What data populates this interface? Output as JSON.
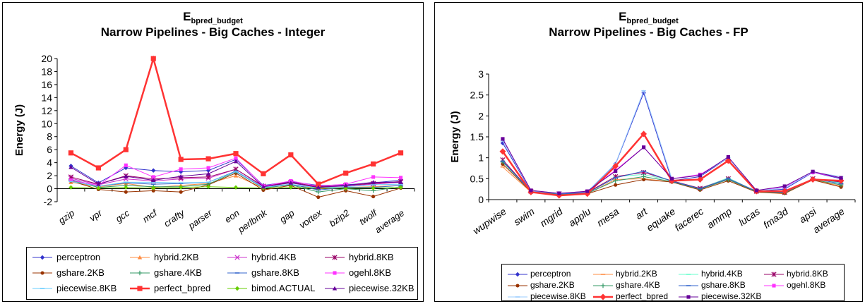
{
  "chart_data": [
    {
      "type": "line",
      "title_main": "E",
      "title_sub": "bpred_budget",
      "title": "Narrow Pipelines - Big Caches - Integer",
      "ylabel": "Energy (J)",
      "xlabel": "",
      "ylim": [
        -2,
        20
      ],
      "yticks": [
        "-2",
        "0",
        "2",
        "4",
        "6",
        "8",
        "10",
        "12",
        "14",
        "16",
        "18",
        "20"
      ],
      "grid": false,
      "legend_position": "bottom",
      "categories": [
        "gzip",
        "vpr",
        "gcc",
        "mcf",
        "crafty",
        "parser",
        "eon",
        "perlbmk",
        "gap",
        "vortex",
        "bzip2",
        "twolf",
        "average"
      ],
      "series": [
        {
          "name": "perceptron",
          "color": "#3333cc",
          "marker": "diamond",
          "values": [
            3.5,
            0.9,
            3.2,
            2.8,
            2.6,
            2.8,
            4.5,
            0.5,
            1.1,
            0.5,
            0.6,
            0.9,
            1.3
          ]
        },
        {
          "name": "hybrid.2KB",
          "color": "#ff8c42",
          "marker": "triangle",
          "values": [
            1.0,
            0.3,
            0.8,
            0.2,
            0.5,
            0.8,
            2.0,
            0.1,
            0.6,
            0.0,
            0.2,
            0.3,
            0.5
          ]
        },
        {
          "name": "hybrid.4KB",
          "color": "#cc33cc",
          "marker": "x",
          "values": [
            1.6,
            0.6,
            1.5,
            1.2,
            1.5,
            1.6,
            3.0,
            0.3,
            1.0,
            0.2,
            0.4,
            0.7,
            1.0
          ]
        },
        {
          "name": "hybrid.8KB",
          "color": "#990066",
          "marker": "star",
          "values": [
            1.8,
            0.7,
            2.0,
            1.5,
            1.7,
            1.8,
            3.0,
            0.4,
            1.0,
            0.3,
            0.5,
            0.8,
            1.1
          ]
        },
        {
          "name": "gshare.2KB",
          "color": "#993300",
          "marker": "circle",
          "values": [
            1.2,
            -0.1,
            -0.5,
            -0.3,
            -0.5,
            0.6,
            2.4,
            -0.2,
            0.5,
            -1.3,
            -0.3,
            -1.2,
            0.1
          ]
        },
        {
          "name": "gshare.4KB",
          "color": "#339966",
          "marker": "plus",
          "values": [
            1.3,
            0.2,
            0.5,
            0.3,
            0.3,
            0.7,
            2.6,
            0.1,
            0.6,
            -0.5,
            0.0,
            -0.3,
            0.3
          ]
        },
        {
          "name": "gshare.8KB",
          "color": "#3366cc",
          "marker": "dash",
          "values": [
            1.4,
            0.4,
            0.9,
            0.7,
            0.8,
            1.0,
            2.7,
            0.2,
            0.7,
            -0.2,
            0.2,
            0.2,
            0.5
          ]
        },
        {
          "name": "ogehl.8KB",
          "color": "#ff33ff",
          "marker": "square",
          "values": [
            1.3,
            0.5,
            3.6,
            1.8,
            3.0,
            3.2,
            4.7,
            0.4,
            1.2,
            0.4,
            0.7,
            1.8,
            1.7
          ]
        },
        {
          "name": "piecewise.8KB",
          "color": "#66ccff",
          "marker": "dash",
          "values": [
            1.1,
            0.4,
            1.0,
            1.0,
            0.9,
            1.0,
            2.6,
            0.2,
            0.7,
            0.1,
            0.3,
            0.6,
            0.7
          ]
        },
        {
          "name": "perfect_bpred",
          "color": "#ff3333",
          "marker": "square",
          "values": [
            5.5,
            3.2,
            6.0,
            20.0,
            4.5,
            4.6,
            5.4,
            2.3,
            5.2,
            0.7,
            2.4,
            3.8,
            5.5
          ]
        },
        {
          "name": "bimod.ACTUAL",
          "color": "#66cc00",
          "marker": "diamond",
          "values": [
            0.2,
            0.1,
            0.2,
            0.1,
            0.2,
            0.3,
            0.2,
            0.1,
            0.2,
            0.1,
            0.1,
            0.1,
            0.2
          ]
        },
        {
          "name": "piecewise.32KB",
          "color": "#660099",
          "marker": "triangle",
          "values": [
            3.3,
            0.7,
            1.9,
            1.3,
            1.9,
            2.3,
            4.2,
            0.3,
            0.9,
            0.2,
            0.5,
            1.0,
            1.0
          ]
        }
      ]
    },
    {
      "type": "line",
      "title_main": "E",
      "title_sub": "bpred_budget",
      "title": "Narrow Pipelines - Big Caches - FP",
      "ylabel": "Energy (J)",
      "xlabel": "",
      "ylim": [
        0,
        3
      ],
      "yticks": [
        "0",
        "0.5",
        "1",
        "1.5",
        "2",
        "2.5",
        "3"
      ],
      "grid": false,
      "legend_position": "bottom",
      "categories": [
        "wupwise",
        "swim",
        "mgrid",
        "applu",
        "mesa",
        "art",
        "equake",
        "facerec",
        "ammp",
        "lucas",
        "fma3d",
        "apsi",
        "average"
      ],
      "series": [
        {
          "name": "perceptron",
          "color": "#3333cc",
          "marker": "diamond",
          "values": [
            1.35,
            0.2,
            0.15,
            0.18,
            0.85,
            2.55,
            0.45,
            0.55,
            1.0,
            0.2,
            0.25,
            0.65,
            0.5
          ]
        },
        {
          "name": "hybrid.2KB",
          "color": "#ff8c42",
          "marker": "dash",
          "values": [
            0.78,
            0.18,
            0.12,
            0.14,
            0.48,
            0.5,
            0.42,
            0.25,
            0.48,
            0.18,
            0.14,
            0.48,
            0.32
          ]
        },
        {
          "name": "hybrid.4KB",
          "color": "#66ffcc",
          "marker": "dash",
          "values": [
            0.9,
            0.19,
            0.13,
            0.16,
            0.55,
            0.6,
            0.45,
            0.27,
            0.52,
            0.19,
            0.16,
            0.5,
            0.4
          ]
        },
        {
          "name": "hybrid.8KB",
          "color": "#990066",
          "marker": "star",
          "values": [
            0.95,
            0.2,
            0.14,
            0.17,
            0.55,
            0.65,
            0.45,
            0.27,
            0.5,
            0.2,
            0.17,
            0.5,
            0.42
          ]
        },
        {
          "name": "gshare.2KB",
          "color": "#993300",
          "marker": "circle",
          "values": [
            0.85,
            0.19,
            0.12,
            0.14,
            0.35,
            0.48,
            0.42,
            0.23,
            0.45,
            0.18,
            0.15,
            0.47,
            0.3
          ]
        },
        {
          "name": "gshare.4KB",
          "color": "#339966",
          "marker": "plus",
          "values": [
            0.9,
            0.2,
            0.13,
            0.15,
            0.45,
            0.55,
            0.43,
            0.25,
            0.48,
            0.19,
            0.16,
            0.48,
            0.35
          ]
        },
        {
          "name": "gshare.8KB",
          "color": "#3366cc",
          "marker": "dash",
          "values": [
            0.92,
            0.2,
            0.14,
            0.16,
            0.52,
            0.68,
            0.44,
            0.26,
            0.5,
            0.2,
            0.17,
            0.5,
            0.38
          ]
        },
        {
          "name": "ogehl.8KB",
          "color": "#ff33ff",
          "marker": "square",
          "values": [
            1.45,
            0.22,
            0.15,
            0.2,
            0.7,
            1.25,
            0.5,
            0.6,
            1.0,
            0.22,
            0.3,
            0.65,
            0.52
          ]
        },
        {
          "name": "piecewise.8KB",
          "color": "#99ccff",
          "marker": "dash",
          "values": [
            1.4,
            0.21,
            0.15,
            0.19,
            0.86,
            2.6,
            0.5,
            0.58,
            1.0,
            0.21,
            0.28,
            0.66,
            0.55
          ]
        },
        {
          "name": "perfect_bpred",
          "color": "#ff3333",
          "marker": "diamond",
          "values": [
            1.15,
            0.18,
            0.1,
            0.14,
            0.8,
            1.57,
            0.45,
            0.48,
            0.93,
            0.2,
            0.2,
            0.48,
            0.45
          ]
        },
        {
          "name": "piecewise.32KB",
          "color": "#660099",
          "marker": "square",
          "values": [
            1.45,
            0.22,
            0.15,
            0.2,
            0.68,
            1.25,
            0.5,
            0.58,
            1.02,
            0.22,
            0.32,
            0.67,
            0.52
          ]
        }
      ]
    }
  ]
}
